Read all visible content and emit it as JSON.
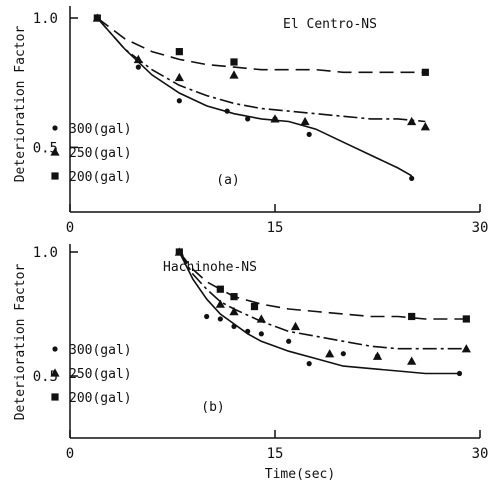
{
  "chart_data": [
    {
      "type": "scatter",
      "title": "El Centro-NS",
      "panel_label": "(a)",
      "xlabel": "",
      "ylabel": "Deterioration Factor",
      "xlim": [
        0,
        30
      ],
      "ylim": [
        0.25,
        1.0
      ],
      "xticks": [
        "0",
        "15",
        "30"
      ],
      "yticks": [
        "1.0",
        "0.5"
      ],
      "grid": false,
      "legend_position": "bottom-left",
      "series": [
        {
          "name": "300(gal)",
          "marker": "circle",
          "line": "solid",
          "points": [
            [
              2,
              1.0
            ],
            [
              5,
              0.81
            ],
            [
              8,
              0.68
            ],
            [
              11.5,
              0.64
            ],
            [
              13,
              0.61
            ],
            [
              15,
              0.61
            ],
            [
              17.5,
              0.55
            ],
            [
              25,
              0.38
            ]
          ],
          "fit": [
            [
              2,
              1.0
            ],
            [
              4,
              0.88
            ],
            [
              6,
              0.78
            ],
            [
              8,
              0.71
            ],
            [
              10,
              0.66
            ],
            [
              12,
              0.63
            ],
            [
              14,
              0.61
            ],
            [
              16,
              0.6
            ],
            [
              18,
              0.57
            ],
            [
              20,
              0.52
            ],
            [
              22,
              0.47
            ],
            [
              24,
              0.42
            ],
            [
              25,
              0.39
            ]
          ]
        },
        {
          "name": "250(gal)",
          "marker": "triangle",
          "line": "dash-dot",
          "points": [
            [
              2,
              1.0
            ],
            [
              5,
              0.84
            ],
            [
              8,
              0.77
            ],
            [
              12,
              0.78
            ],
            [
              15,
              0.61
            ],
            [
              17.2,
              0.6
            ],
            [
              25,
              0.6
            ],
            [
              26,
              0.58
            ]
          ],
          "fit": [
            [
              2,
              1.0
            ],
            [
              4,
              0.88
            ],
            [
              6,
              0.8
            ],
            [
              8,
              0.74
            ],
            [
              10,
              0.7
            ],
            [
              12,
              0.67
            ],
            [
              14,
              0.65
            ],
            [
              16,
              0.64
            ],
            [
              18,
              0.63
            ],
            [
              20,
              0.62
            ],
            [
              22,
              0.61
            ],
            [
              24,
              0.61
            ],
            [
              26,
              0.6
            ]
          ]
        },
        {
          "name": "200(gal)",
          "marker": "square",
          "line": "dashed",
          "points": [
            [
              2,
              1.0
            ],
            [
              8,
              0.87
            ],
            [
              12,
              0.83
            ],
            [
              26,
              0.79
            ]
          ],
          "fit": [
            [
              2,
              1.0
            ],
            [
              4,
              0.92
            ],
            [
              6,
              0.87
            ],
            [
              8,
              0.84
            ],
            [
              10,
              0.82
            ],
            [
              12,
              0.81
            ],
            [
              14,
              0.8
            ],
            [
              16,
              0.8
            ],
            [
              18,
              0.8
            ],
            [
              20,
              0.79
            ],
            [
              22,
              0.79
            ],
            [
              24,
              0.79
            ],
            [
              26,
              0.79
            ]
          ]
        }
      ]
    },
    {
      "type": "scatter",
      "title": "Hachinohe-NS",
      "panel_label": "(b)",
      "xlabel": "Time(sec)",
      "ylabel": "Deterioration Factor",
      "xlim": [
        0,
        30
      ],
      "ylim": [
        0.25,
        1.0
      ],
      "xticks": [
        "0",
        "15",
        "30"
      ],
      "yticks": [
        "1.0",
        "0.5"
      ],
      "grid": false,
      "legend_position": "bottom-left",
      "series": [
        {
          "name": "300(gal)",
          "marker": "circle",
          "line": "solid",
          "points": [
            [
              8,
              1.0
            ],
            [
              10,
              0.74
            ],
            [
              11,
              0.73
            ],
            [
              12,
              0.7
            ],
            [
              13,
              0.68
            ],
            [
              14,
              0.67
            ],
            [
              16,
              0.64
            ],
            [
              17.5,
              0.55
            ],
            [
              20,
              0.59
            ],
            [
              22.5,
              0.58
            ],
            [
              28.5,
              0.51
            ]
          ],
          "fit": [
            [
              8,
              1.0
            ],
            [
              9,
              0.89
            ],
            [
              10,
              0.81
            ],
            [
              11,
              0.75
            ],
            [
              12,
              0.71
            ],
            [
              13,
              0.67
            ],
            [
              14,
              0.64
            ],
            [
              16,
              0.6
            ],
            [
              18,
              0.57
            ],
            [
              20,
              0.54
            ],
            [
              22,
              0.53
            ],
            [
              24,
              0.52
            ],
            [
              26,
              0.51
            ],
            [
              28.5,
              0.51
            ]
          ]
        },
        {
          "name": "250(gal)",
          "marker": "triangle",
          "line": "dash-dot",
          "points": [
            [
              8,
              1.0
            ],
            [
              11,
              0.79
            ],
            [
              12,
              0.76
            ],
            [
              14,
              0.73
            ],
            [
              16.5,
              0.7
            ],
            [
              19,
              0.59
            ],
            [
              22.5,
              0.58
            ],
            [
              25,
              0.56
            ],
            [
              29,
              0.61
            ]
          ],
          "fit": [
            [
              8,
              1.0
            ],
            [
              9,
              0.91
            ],
            [
              10,
              0.85
            ],
            [
              11,
              0.8
            ],
            [
              12,
              0.77
            ],
            [
              14,
              0.72
            ],
            [
              16,
              0.68
            ],
            [
              18,
              0.66
            ],
            [
              20,
              0.64
            ],
            [
              22,
              0.62
            ],
            [
              24,
              0.61
            ],
            [
              26,
              0.61
            ],
            [
              29,
              0.61
            ]
          ]
        },
        {
          "name": "200(gal)",
          "marker": "square",
          "line": "dashed",
          "points": [
            [
              8,
              1.0
            ],
            [
              11,
              0.85
            ],
            [
              12,
              0.82
            ],
            [
              13.5,
              0.78
            ],
            [
              25,
              0.74
            ],
            [
              29,
              0.73
            ]
          ],
          "fit": [
            [
              8,
              1.0
            ],
            [
              9,
              0.93
            ],
            [
              10,
              0.88
            ],
            [
              11,
              0.85
            ],
            [
              12,
              0.82
            ],
            [
              14,
              0.79
            ],
            [
              16,
              0.77
            ],
            [
              18,
              0.76
            ],
            [
              20,
              0.75
            ],
            [
              22,
              0.74
            ],
            [
              24,
              0.74
            ],
            [
              26,
              0.73
            ],
            [
              29,
              0.73
            ]
          ]
        }
      ]
    }
  ]
}
